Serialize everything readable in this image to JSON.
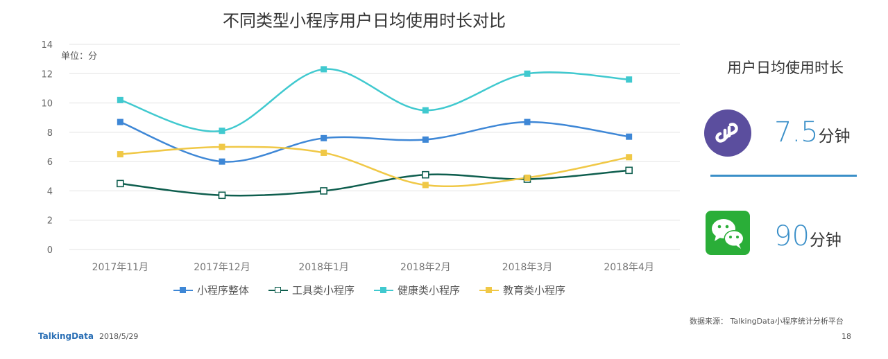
{
  "chart_data": {
    "type": "line",
    "title": "不同类型小程序用户日均使用时长对比",
    "unit_label": "单位：分",
    "categories": [
      "2017年11月",
      "2017年12月",
      "2018年1月",
      "2018年2月",
      "2018年3月",
      "2018年4月"
    ],
    "ylim": [
      0,
      14
    ],
    "yticks": [
      "0",
      "2",
      "4",
      "6",
      "8",
      "10",
      "12",
      "14"
    ],
    "grid": true,
    "legend_position": "bottom",
    "series": [
      {
        "name": "小程序整体",
        "color": "#3e87d6",
        "marker": "square-filled",
        "values": [
          8.7,
          6.0,
          7.6,
          7.5,
          8.7,
          7.7
        ]
      },
      {
        "name": "工具类小程序",
        "color": "#0e5e4e",
        "marker": "square-open",
        "values": [
          4.5,
          3.7,
          4.0,
          5.1,
          4.8,
          5.4
        ]
      },
      {
        "name": "健康类小程序",
        "color": "#40c9cf",
        "marker": "square-filled",
        "values": [
          10.2,
          8.1,
          12.3,
          9.5,
          12.0,
          11.6
        ]
      },
      {
        "name": "教育类小程序",
        "color": "#f0c846",
        "marker": "square-filled",
        "values": [
          6.5,
          7.0,
          6.6,
          4.4,
          4.9,
          6.3
        ]
      }
    ]
  },
  "side_panel": {
    "title": "用户日均使用时长",
    "mini_program": {
      "value": "7.5",
      "unit": "分钟",
      "icon": "mini-program-icon",
      "icon_color": "#5b4e9e"
    },
    "wechat": {
      "value": "90",
      "unit": "分钟",
      "icon": "wechat-icon",
      "icon_color": "#2aae38"
    },
    "accent_color": "#3a8fc8"
  },
  "footer": {
    "source": "数据来源： TalkingData小程序统计分析平台",
    "brand": "TalkingData",
    "date": "2018/5/29",
    "page": "18"
  }
}
